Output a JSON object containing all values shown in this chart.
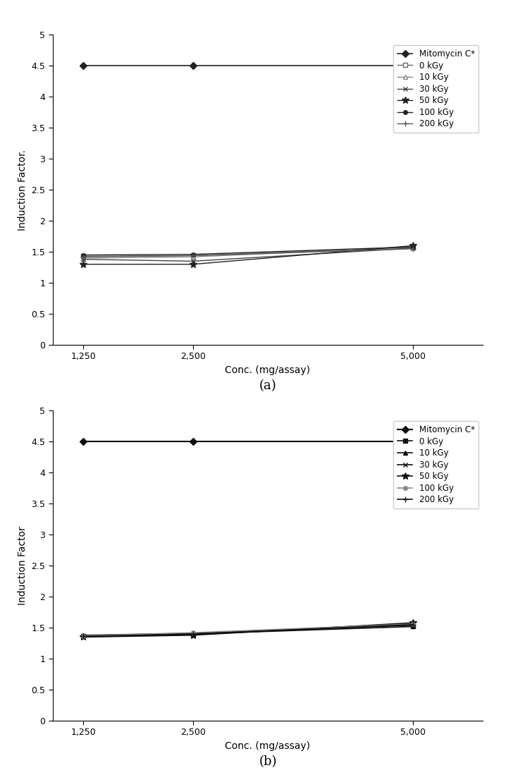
{
  "x_values": [
    1250,
    2500,
    5000
  ],
  "x_ticks": [
    1250,
    2500,
    5000
  ],
  "x_tick_labels": [
    "1,250",
    "2,500",
    "5,000"
  ],
  "x_label": "Conc. (mg/assay)",
  "y_label_a": "Induction Factor.",
  "y_label_b": "Induction Factor",
  "y_lim": [
    0,
    5
  ],
  "y_ticks": [
    0,
    0.5,
    1.0,
    1.5,
    2.0,
    2.5,
    3.0,
    3.5,
    4.0,
    4.5,
    5.0
  ],
  "y_tick_labels": [
    "0",
    "0.5",
    "1",
    "1.5",
    "2",
    "2.5",
    "3",
    "3.5",
    "4",
    "4.5",
    "5"
  ],
  "chart_a": {
    "subtitle": "(a)",
    "series": [
      {
        "label": "Mitomycin C*",
        "values": [
          4.5,
          4.5,
          4.5
        ],
        "color": "#222222",
        "marker": "D",
        "markersize": 5,
        "linewidth": 1.2,
        "linestyle": "-",
        "markerfacecolor": "#222222"
      },
      {
        "label": "0 kGy",
        "values": [
          1.43,
          1.44,
          1.57
        ],
        "color": "#666666",
        "marker": "s",
        "markersize": 4,
        "linewidth": 1.0,
        "linestyle": "-",
        "markerfacecolor": "white"
      },
      {
        "label": "10 kGy",
        "values": [
          1.4,
          1.42,
          1.57
        ],
        "color": "#888888",
        "marker": "^",
        "markersize": 4,
        "linewidth": 1.0,
        "linestyle": "-",
        "markerfacecolor": "white"
      },
      {
        "label": "30 kGy",
        "values": [
          1.38,
          1.35,
          1.56
        ],
        "color": "#444444",
        "marker": "x",
        "markersize": 5,
        "linewidth": 1.0,
        "linestyle": "-",
        "markerfacecolor": "#444444"
      },
      {
        "label": "50 kGy",
        "values": [
          1.3,
          1.3,
          1.6
        ],
        "color": "#222222",
        "marker": "*",
        "markersize": 7,
        "linewidth": 1.0,
        "linestyle": "-",
        "markerfacecolor": "#222222"
      },
      {
        "label": "100 kGy",
        "values": [
          1.45,
          1.46,
          1.58
        ],
        "color": "#222222",
        "marker": "o",
        "markersize": 4,
        "linewidth": 1.0,
        "linestyle": "-",
        "markerfacecolor": "#222222"
      },
      {
        "label": "200 kGy",
        "values": [
          1.42,
          1.44,
          1.55
        ],
        "color": "#555555",
        "marker": "+",
        "markersize": 6,
        "linewidth": 1.0,
        "linestyle": "-",
        "markerfacecolor": "#555555"
      }
    ]
  },
  "chart_b": {
    "subtitle": "(b)",
    "series": [
      {
        "label": "Mitomycin C*",
        "values": [
          4.5,
          4.5,
          4.5
        ],
        "color": "#111111",
        "marker": "D",
        "markersize": 5,
        "linewidth": 1.5,
        "linestyle": "-",
        "markerfacecolor": "#111111"
      },
      {
        "label": "0 kGy",
        "values": [
          1.37,
          1.4,
          1.52
        ],
        "color": "#111111",
        "marker": "s",
        "markersize": 4,
        "linewidth": 1.2,
        "linestyle": "-",
        "markerfacecolor": "#111111"
      },
      {
        "label": "10 kGy",
        "values": [
          1.38,
          1.41,
          1.54
        ],
        "color": "#111111",
        "marker": "^",
        "markersize": 4,
        "linewidth": 1.2,
        "linestyle": "-",
        "markerfacecolor": "#111111"
      },
      {
        "label": "30 kGy",
        "values": [
          1.36,
          1.39,
          1.57
        ],
        "color": "#111111",
        "marker": "x",
        "markersize": 5,
        "linewidth": 1.2,
        "linestyle": "-",
        "markerfacecolor": "#111111"
      },
      {
        "label": "50 kGy",
        "values": [
          1.35,
          1.38,
          1.58
        ],
        "color": "#111111",
        "marker": "*",
        "markersize": 7,
        "linewidth": 1.2,
        "linestyle": "-",
        "markerfacecolor": "#111111"
      },
      {
        "label": "100 kGy",
        "values": [
          1.37,
          1.42,
          1.56
        ],
        "color": "#888888",
        "marker": "o",
        "markersize": 4,
        "linewidth": 1.2,
        "linestyle": "-",
        "markerfacecolor": "#888888"
      },
      {
        "label": "200 kGy",
        "values": [
          1.36,
          1.4,
          1.55
        ],
        "color": "#111111",
        "marker": "+",
        "markersize": 6,
        "linewidth": 1.2,
        "linestyle": "-",
        "markerfacecolor": "#111111"
      }
    ]
  },
  "legend_fontsize": 8.5,
  "tick_fontsize": 9,
  "label_fontsize": 10,
  "subtitle_fontsize": 13
}
